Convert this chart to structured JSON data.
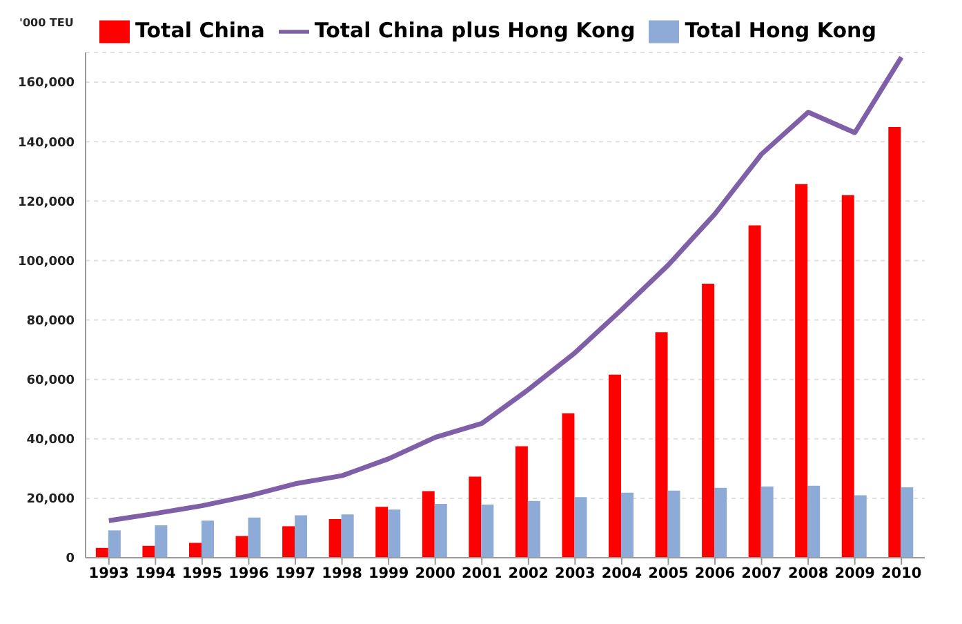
{
  "chart_data": {
    "type": "bar",
    "ylabel": "'000 TEU",
    "categories": [
      "1993",
      "1994",
      "1995",
      "1996",
      "1997",
      "1998",
      "1999",
      "2000",
      "2001",
      "2002",
      "2003",
      "2004",
      "2005",
      "2006",
      "2007",
      "2008",
      "2009",
      "2010"
    ],
    "series": [
      {
        "name": "Total China",
        "color": "#ff0000",
        "values": [
          3300,
          4000,
          5000,
          7300,
          10600,
          13000,
          17100,
          22400,
          27300,
          37500,
          48600,
          61600,
          75900,
          92200,
          111800,
          125700,
          122000,
          144900
        ]
      },
      {
        "name": "Total Hong Kong",
        "color": "#8eaad6",
        "values": [
          9200,
          10900,
          12500,
          13500,
          14300,
          14600,
          16200,
          18100,
          17900,
          19100,
          20400,
          21900,
          22600,
          23500,
          24000,
          24200,
          21000,
          23700
        ]
      },
      {
        "name": "Total China plus Hong Kong",
        "type": "line",
        "color": "#7f60a8",
        "values": [
          12500,
          14900,
          17500,
          20800,
          24900,
          27600,
          33300,
          40500,
          45200,
          56600,
          69000,
          83500,
          98500,
          115700,
          135800,
          149900,
          143000,
          168400
        ]
      }
    ],
    "ylim": [
      0,
      170000
    ],
    "yticks": [
      {
        "value": 0,
        "label": "0"
      },
      {
        "value": 20000,
        "label": "20,000"
      },
      {
        "value": 40000,
        "label": "40,000"
      },
      {
        "value": 60000,
        "label": "60,000"
      },
      {
        "value": 80000,
        "label": "80,000"
      },
      {
        "value": 100000,
        "label": "100,000"
      },
      {
        "value": 120000,
        "label": "120,000"
      },
      {
        "value": 140000,
        "label": "140,000"
      },
      {
        "value": 160000,
        "label": "160,000"
      }
    ],
    "grid": "y",
    "legend": "top left",
    "marker": "none",
    "line_style": "solid"
  }
}
